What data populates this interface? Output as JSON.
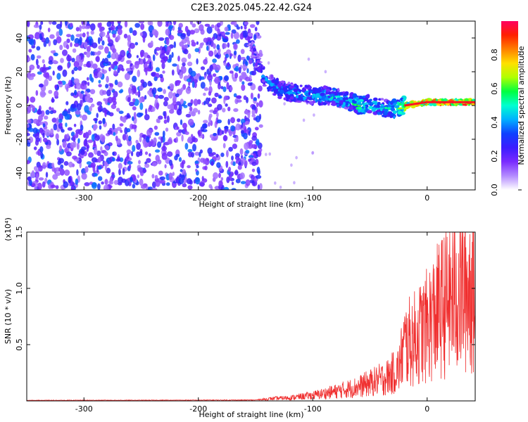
{
  "title": "C2E3.2025.045.22.42.G24",
  "chart_data": [
    {
      "type": "heatmap",
      "xlabel": "Height of straight line (km)",
      "ylabel": "Frequency (Hz)",
      "xlim": [
        -350,
        42
      ],
      "ylim": [
        -50,
        50
      ],
      "xticks": [
        -300,
        -200,
        -100,
        0
      ],
      "yticks": [
        -40,
        -20,
        0,
        20,
        40
      ],
      "colorbar": {
        "label": "Normalized spectral amplitude",
        "range": [
          0,
          1
        ],
        "ticks": [
          "0.0",
          "0.2",
          "0.4",
          "0.6",
          "0.8"
        ],
        "colormap": [
          "#ffffff",
          "#b48cff",
          "#7a2bff",
          "#3b1cff",
          "#0f40ff",
          "#00b0ff",
          "#00ffd0",
          "#00ff40",
          "#b0ff00",
          "#ffe000",
          "#ff8000",
          "#ff2000",
          "#ff0060"
        ]
      },
      "noise_region_x": [
        -350,
        -145
      ],
      "signal_track": [
        {
          "x": -155,
          "freq": 40,
          "amp": 0.3
        },
        {
          "x": -150,
          "freq": 28,
          "amp": 0.35
        },
        {
          "x": -145,
          "freq": 20,
          "amp": 0.4
        },
        {
          "x": -140,
          "freq": 14,
          "amp": 0.45
        },
        {
          "x": -130,
          "freq": 10,
          "amp": 0.45
        },
        {
          "x": -120,
          "freq": 8,
          "amp": 0.45
        },
        {
          "x": -110,
          "freq": 7,
          "amp": 0.5
        },
        {
          "x": -100,
          "freq": 6,
          "amp": 0.5
        },
        {
          "x": -90,
          "freq": 6,
          "amp": 0.5
        },
        {
          "x": -80,
          "freq": 5,
          "amp": 0.55
        },
        {
          "x": -70,
          "freq": 3,
          "amp": 0.55
        },
        {
          "x": -60,
          "freq": 0,
          "amp": 0.6
        },
        {
          "x": -50,
          "freq": 1,
          "amp": 0.55
        },
        {
          "x": -40,
          "freq": -1,
          "amp": 0.5
        },
        {
          "x": -30,
          "freq": -2,
          "amp": 0.55
        },
        {
          "x": -20,
          "freq": 0,
          "amp": 0.75
        },
        {
          "x": -10,
          "freq": 1,
          "amp": 0.85
        },
        {
          "x": 0,
          "freq": 2,
          "amp": 0.9
        },
        {
          "x": 10,
          "freq": 2,
          "amp": 0.95
        },
        {
          "x": 20,
          "freq": 2,
          "amp": 0.95
        },
        {
          "x": 30,
          "freq": 2,
          "amp": 0.95
        },
        {
          "x": 42,
          "freq": 2,
          "amp": 0.95
        }
      ]
    },
    {
      "type": "line",
      "xlabel": "Height of straight line (km)",
      "ylabel": "SNR (10 * v/v)",
      "y_multiplier": "(x10⁴)",
      "xlim": [
        -350,
        42
      ],
      "ylim": [
        0,
        1.5
      ],
      "xticks": [
        -300,
        -200,
        -100,
        0
      ],
      "yticks": [
        0.5,
        1.0,
        1.5
      ],
      "series_color": "#f03030",
      "envelope": [
        {
          "x": -350,
          "y": 0.005
        },
        {
          "x": -300,
          "y": 0.006
        },
        {
          "x": -250,
          "y": 0.006
        },
        {
          "x": -200,
          "y": 0.007
        },
        {
          "x": -150,
          "y": 0.008
        },
        {
          "x": -135,
          "y": 0.03
        },
        {
          "x": -120,
          "y": 0.04
        },
        {
          "x": -100,
          "y": 0.07
        },
        {
          "x": -80,
          "y": 0.12
        },
        {
          "x": -60,
          "y": 0.18
        },
        {
          "x": -45,
          "y": 0.25
        },
        {
          "x": -35,
          "y": 0.3
        },
        {
          "x": -25,
          "y": 0.4
        },
        {
          "x": -20,
          "y": 0.7
        },
        {
          "x": -10,
          "y": 0.8
        },
        {
          "x": 0,
          "y": 0.95
        },
        {
          "x": 10,
          "y": 1.15
        },
        {
          "x": 20,
          "y": 1.3
        },
        {
          "x": 30,
          "y": 1.4
        },
        {
          "x": 42,
          "y": 1.48
        }
      ]
    }
  ]
}
